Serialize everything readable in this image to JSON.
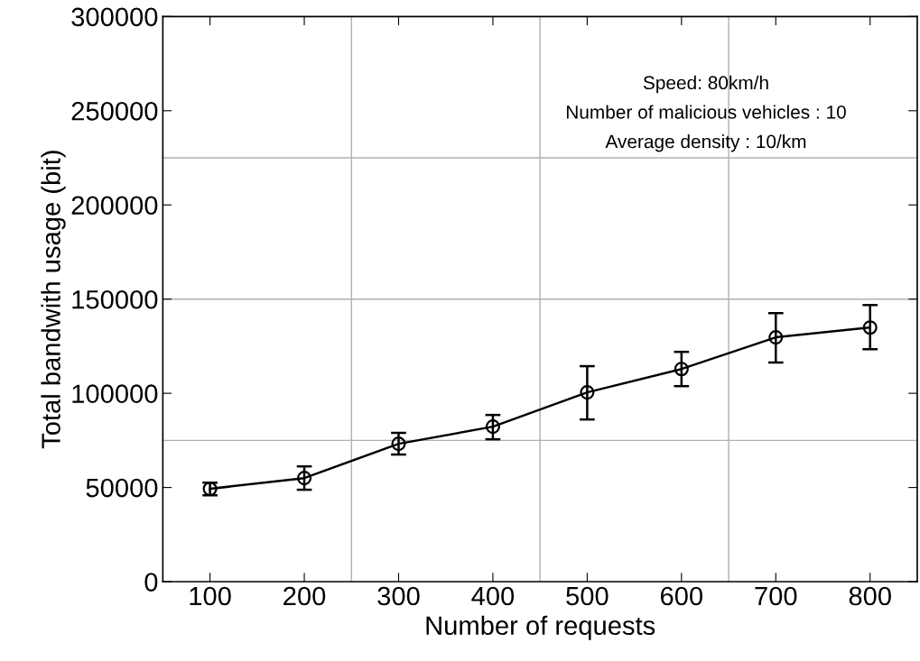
{
  "chart_data": {
    "type": "line",
    "xlabel": "Number of requests",
    "ylabel": "Total bandwith usage (bit)",
    "x": [
      100,
      200,
      300,
      400,
      500,
      600,
      700,
      800
    ],
    "series": [
      {
        "color": "#000000",
        "values": [
          49300,
          55000,
          73200,
          82300,
          100500,
          112900,
          129700,
          134900
        ],
        "errors": [
          [
            45900,
            52600
          ],
          [
            48800,
            61200
          ],
          [
            67500,
            79000
          ],
          [
            75600,
            88500
          ],
          [
            86100,
            114400
          ],
          [
            103800,
            122000
          ],
          [
            116300,
            142600
          ],
          [
            123400,
            146900
          ]
        ]
      }
    ],
    "marker": "circle",
    "line_style": "solid",
    "xlim": [
      50,
      850
    ],
    "xticks": [
      100,
      200,
      300,
      400,
      500,
      600,
      700,
      800
    ],
    "ylim": [
      0,
      300000
    ],
    "yticks": [
      0,
      50000,
      100000,
      150000,
      200000,
      250000,
      300000
    ],
    "ref_lines": [
      {
        "axis": "x",
        "value": 250,
        "color": "#b0b0b0"
      },
      {
        "axis": "x",
        "value": 450,
        "color": "#b0b0b0"
      },
      {
        "axis": "x",
        "value": 650,
        "color": "#b0b0b0"
      },
      {
        "axis": "y",
        "value": 75000,
        "color": "#b0b0b0"
      },
      {
        "axis": "y",
        "value": 150000,
        "color": "#b0b0b0"
      },
      {
        "axis": "y",
        "value": 225000,
        "color": "#b0b0b0"
      }
    ],
    "annotations": [
      "Speed: 80km/h",
      "Number of malicious vehicles : 10",
      "Average density : 10/km"
    ],
    "grid": false,
    "legend": false
  }
}
